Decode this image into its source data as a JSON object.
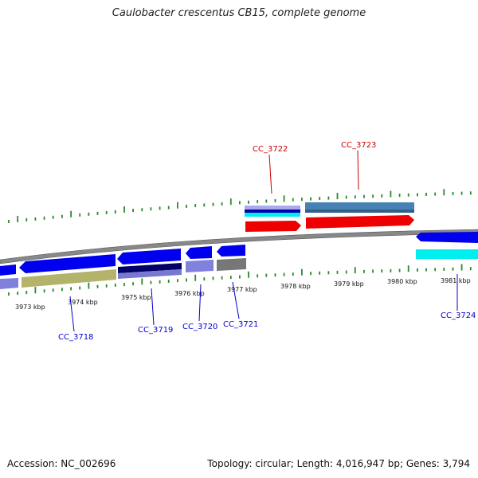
{
  "title": "Caulobacter crescentus CB15, complete genome",
  "accession": "Accession: NC_002696",
  "summary": "Topology: circular; Length: 4,016,947 bp; Genes: 3,794",
  "colors": {
    "blue": "#0000ee",
    "navy": "#000066",
    "periwinkle": "#8080dd",
    "khaki": "#b3b36b",
    "gray": "#777777",
    "steel": "#4682b4",
    "red": "#ee0000",
    "cyan": "#00eeee",
    "tick": "#2a8a2a",
    "plus_label": "#cc0000",
    "minus_label": "#0000cc"
  },
  "tick_labels": [
    "3973 kbp",
    "3974 kbp",
    "3975 kbp",
    "3976 kbp",
    "3977 kbp",
    "3978 kbp",
    "3979 kbp",
    "3980 kbp",
    "3981 kbp"
  ],
  "gene_labels": {
    "cc3718": "CC_3718",
    "cc3719": "CC_3719",
    "cc3720": "CC_3720",
    "cc3721": "CC_3721",
    "cc3722": "CC_3722",
    "cc3723": "CC_3723",
    "cc3724": "CC_3724"
  }
}
